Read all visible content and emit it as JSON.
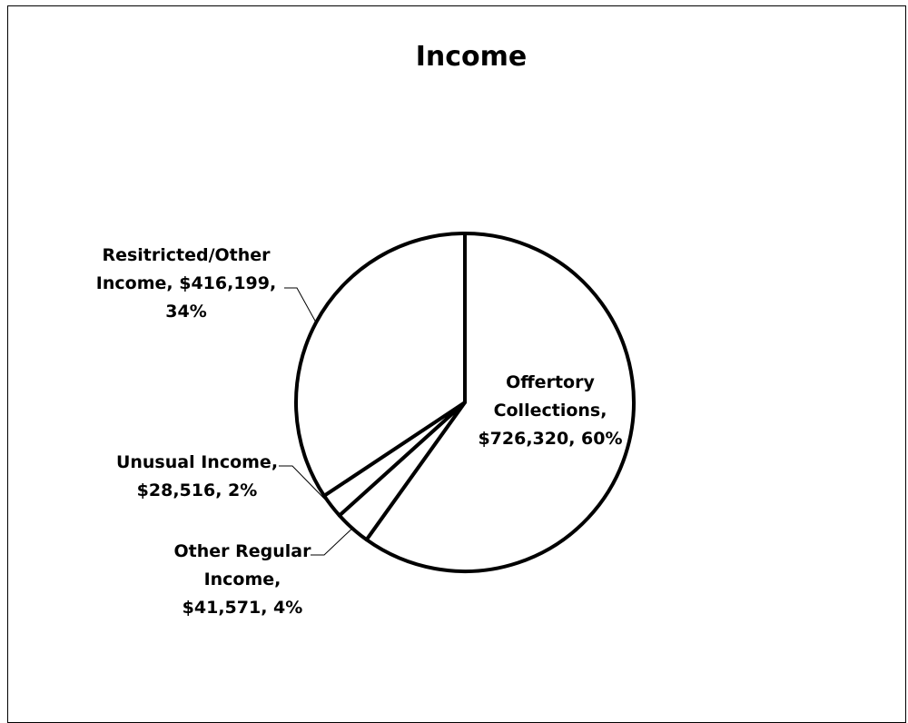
{
  "chart_data": {
    "type": "pie",
    "title": "Income",
    "slices": [
      {
        "name": "Offertory Collections",
        "value": 726320,
        "value_label": "$726,320",
        "percent_label": "60%",
        "label_lines": [
          "Offertory",
          "Collections,",
          "$726,320, 60%"
        ]
      },
      {
        "name": "Other Regular Income",
        "value": 41571,
        "value_label": "$41,571",
        "percent_label": "4%",
        "label_lines": [
          "Other Regular",
          "Income,",
          "$41,571, 4%"
        ]
      },
      {
        "name": "Unusual Income",
        "value": 28516,
        "value_label": "$28,516",
        "percent_label": "2%",
        "label_lines": [
          "Unusual Income,",
          "$28,516, 2%"
        ]
      },
      {
        "name": "Resitricted/Other Income",
        "value": 416199,
        "value_label": "$416,199",
        "percent_label": "34%",
        "label_lines": [
          "Resitricted/Other",
          "Income, $416,199,",
          "34%"
        ]
      }
    ],
    "start_angle": "12 o'clock",
    "direction": "clockwise",
    "legend": "none",
    "fill_color": "#ffffff",
    "stroke_color": "#000000"
  }
}
